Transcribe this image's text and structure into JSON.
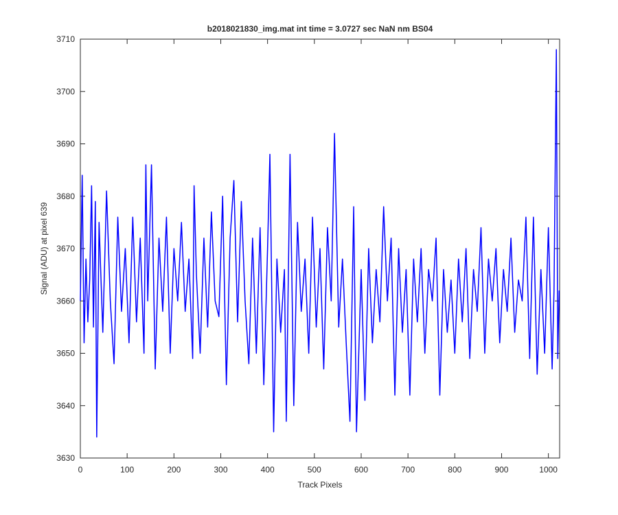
{
  "chart_data": {
    "type": "line",
    "title": "b2018021830_img.mat int time = 3.0727 sec  NaN nm BS04",
    "x_label": "Track Pixels",
    "y_label": "Signal (ADU) at pixel 639",
    "color": "#0000ff",
    "xlim": [
      0,
      1024
    ],
    "xticks": [
      0,
      100,
      200,
      300,
      400,
      500,
      600,
      700,
      800,
      900,
      1000
    ],
    "ylim": [
      3630,
      3710
    ],
    "yticks": [
      3630,
      3640,
      3650,
      3660,
      3670,
      3680,
      3690,
      3700,
      3710
    ],
    "grid": false,
    "x": [
      0,
      4,
      8,
      12,
      16,
      20,
      24,
      28,
      32,
      35,
      40,
      48,
      56,
      64,
      72,
      80,
      88,
      96,
      104,
      112,
      120,
      128,
      136,
      140,
      144,
      152,
      160,
      168,
      176,
      184,
      192,
      200,
      208,
      216,
      224,
      232,
      240,
      243,
      248,
      256,
      264,
      272,
      280,
      288,
      296,
      304,
      312,
      320,
      328,
      336,
      344,
      352,
      360,
      368,
      376,
      384,
      392,
      400,
      405,
      413,
      420,
      428,
      436,
      440,
      448,
      456,
      464,
      472,
      480,
      488,
      496,
      504,
      512,
      520,
      528,
      536,
      543,
      552,
      560,
      568,
      576,
      584,
      590,
      600,
      608,
      616,
      624,
      632,
      640,
      648,
      656,
      664,
      672,
      680,
      688,
      696,
      704,
      712,
      720,
      728,
      736,
      744,
      752,
      760,
      768,
      776,
      784,
      792,
      800,
      808,
      816,
      824,
      832,
      840,
      848,
      856,
      864,
      872,
      880,
      888,
      896,
      904,
      912,
      920,
      928,
      936,
      944,
      952,
      960,
      968,
      976,
      984,
      992,
      1000,
      1008,
      1012,
      1017,
      1020,
      1023
    ],
    "values": [
      3660,
      3684,
      3652,
      3668,
      3656,
      3664,
      3682,
      3655,
      3679,
      3634,
      3675,
      3654,
      3681,
      3660,
      3648,
      3676,
      3658,
      3670,
      3652,
      3676,
      3656,
      3672,
      3650,
      3686,
      3660,
      3686,
      3647,
      3672,
      3658,
      3676,
      3650,
      3670,
      3660,
      3675,
      3658,
      3668,
      3649,
      3682,
      3665,
      3650,
      3672,
      3655,
      3677,
      3660,
      3657,
      3680,
      3644,
      3672,
      3683,
      3656,
      3679,
      3660,
      3648,
      3672,
      3650,
      3674,
      3644,
      3670,
      3688,
      3635,
      3668,
      3654,
      3666,
      3637,
      3688,
      3640,
      3675,
      3658,
      3668,
      3650,
      3676,
      3655,
      3670,
      3647,
      3674,
      3660,
      3692,
      3655,
      3668,
      3652,
      3637,
      3678,
      3635,
      3666,
      3641,
      3670,
      3652,
      3666,
      3656,
      3678,
      3660,
      3672,
      3642,
      3670,
      3654,
      3666,
      3642,
      3668,
      3656,
      3670,
      3650,
      3666,
      3660,
      3672,
      3642,
      3666,
      3654,
      3664,
      3650,
      3668,
      3656,
      3670,
      3649,
      3666,
      3658,
      3674,
      3650,
      3668,
      3660,
      3670,
      3652,
      3666,
      3658,
      3672,
      3654,
      3664,
      3660,
      3676,
      3649,
      3676,
      3646,
      3666,
      3650,
      3674,
      3647,
      3662,
      3708,
      3649,
      3662
    ]
  }
}
